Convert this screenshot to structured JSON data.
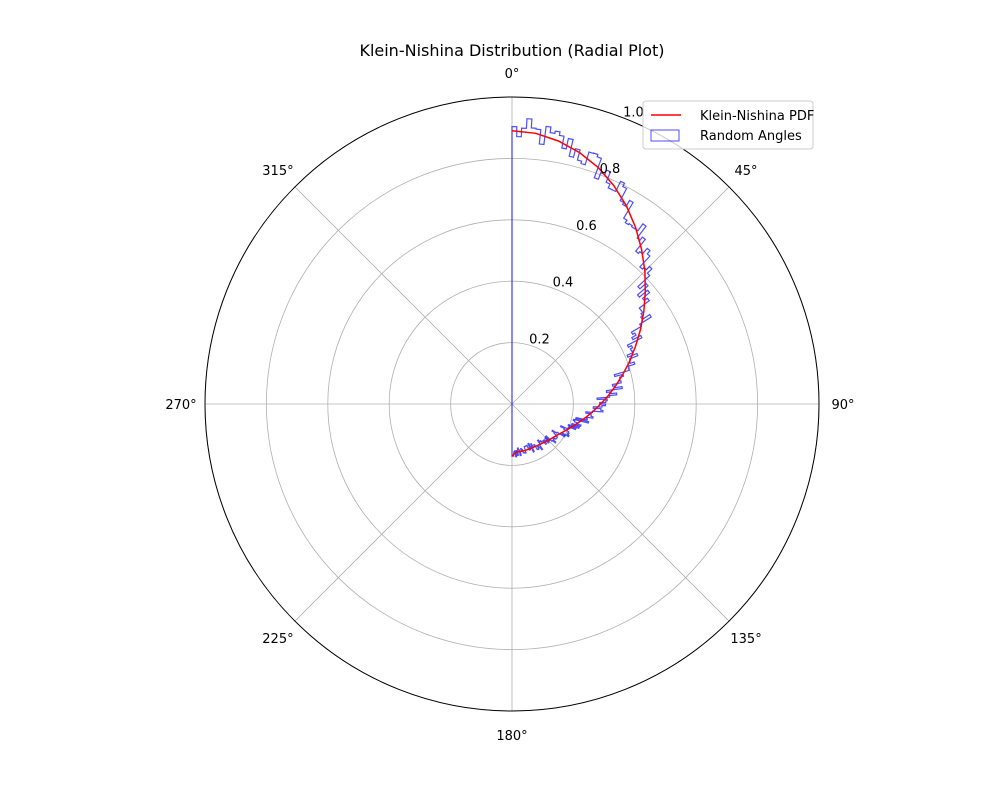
{
  "chart_data": {
    "type": "polar",
    "title": "Klein-Nishina Distribution (Radial Plot)",
    "theta_zero_location": "N",
    "theta_direction": "clockwise",
    "theta_ticks": [
      "0°",
      "45°",
      "90°",
      "135°",
      "180°",
      "225°",
      "270°",
      "315°"
    ],
    "theta_tick_degrees": [
      0,
      45,
      90,
      135,
      180,
      225,
      270,
      315
    ],
    "r_ticks": [
      "0.2",
      "0.4",
      "0.6",
      "0.8",
      "1.0"
    ],
    "r_tick_values": [
      0.2,
      0.4,
      0.6,
      0.8,
      1.0
    ],
    "rlim": [
      0,
      1.0
    ],
    "grid": true,
    "legend_position": "top-right",
    "series": [
      {
        "name": "Klein-Nishina PDF",
        "kind": "line",
        "color": "#ff0000",
        "theta_deg": [
          0,
          5,
          10,
          15,
          20,
          25,
          30,
          35,
          40,
          45,
          50,
          55,
          60,
          65,
          70,
          75,
          80,
          85,
          90,
          95,
          100,
          105,
          110,
          115,
          120,
          125,
          130,
          135,
          140,
          145,
          150,
          155,
          160,
          165,
          170,
          175,
          180
        ],
        "r": [
          0.89,
          0.885,
          0.87,
          0.848,
          0.82,
          0.785,
          0.745,
          0.702,
          0.657,
          0.612,
          0.567,
          0.524,
          0.483,
          0.444,
          0.408,
          0.374,
          0.343,
          0.315,
          0.289,
          0.266,
          0.245,
          0.227,
          0.211,
          0.198,
          0.187,
          0.178,
          0.172,
          0.167,
          0.163,
          0.16,
          0.158,
          0.157,
          0.157,
          0.157,
          0.157,
          0.157,
          0.17
        ]
      },
      {
        "name": "Random Angles",
        "kind": "histogram-steps",
        "color": "#0000ff",
        "baseline_r": 0.89,
        "bin_width_deg": 1
      }
    ]
  }
}
